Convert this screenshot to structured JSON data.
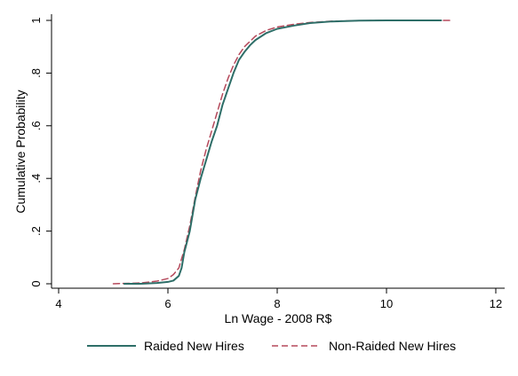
{
  "chart_data": {
    "type": "line",
    "xlabel": "Ln Wage - 2008 R$",
    "ylabel": "Cumulative Probability",
    "xlim": [
      4,
      12
    ],
    "ylim": [
      0,
      1
    ],
    "x_ticks": [
      4,
      6,
      8,
      10,
      12
    ],
    "x_tick_labels": [
      "4",
      "6",
      "8",
      "10",
      "12"
    ],
    "y_ticks": [
      0,
      0.2,
      0.4,
      0.6,
      0.8,
      1
    ],
    "y_tick_labels": [
      "0",
      ".2",
      ".4",
      ".6",
      ".8",
      "1"
    ],
    "grid": false,
    "legend_position": "bottom",
    "series": [
      {
        "name": "Raided New Hires",
        "color": "#2e6e68",
        "style": "solid",
        "x": [
          5.2,
          5.5,
          5.8,
          6.0,
          6.1,
          6.2,
          6.25,
          6.3,
          6.4,
          6.5,
          6.6,
          6.7,
          6.8,
          6.9,
          7.0,
          7.1,
          7.2,
          7.3,
          7.4,
          7.5,
          7.6,
          7.8,
          8.0,
          8.3,
          8.6,
          9.0,
          9.5,
          10.0,
          11.0
        ],
        "y": [
          0.0,
          0.0,
          0.003,
          0.007,
          0.012,
          0.03,
          0.06,
          0.12,
          0.2,
          0.32,
          0.4,
          0.47,
          0.54,
          0.6,
          0.68,
          0.74,
          0.8,
          0.85,
          0.88,
          0.905,
          0.925,
          0.952,
          0.968,
          0.98,
          0.99,
          0.996,
          0.999,
          1.0,
          1.0
        ]
      },
      {
        "name": "Non-Raided New Hires",
        "color": "#b5495b",
        "style": "dashed",
        "x": [
          5.0,
          5.5,
          5.8,
          6.0,
          6.1,
          6.2,
          6.3,
          6.4,
          6.5,
          6.6,
          6.7,
          6.8,
          6.9,
          7.0,
          7.1,
          7.2,
          7.3,
          7.4,
          7.5,
          7.6,
          7.8,
          8.0,
          8.3,
          8.6,
          9.0,
          9.5,
          10.0,
          11.2
        ],
        "y": [
          0.0,
          0.003,
          0.01,
          0.02,
          0.035,
          0.06,
          0.13,
          0.22,
          0.33,
          0.43,
          0.51,
          0.58,
          0.65,
          0.72,
          0.78,
          0.83,
          0.87,
          0.9,
          0.92,
          0.94,
          0.962,
          0.975,
          0.985,
          0.992,
          0.997,
          0.999,
          1.0,
          1.0
        ]
      }
    ]
  }
}
